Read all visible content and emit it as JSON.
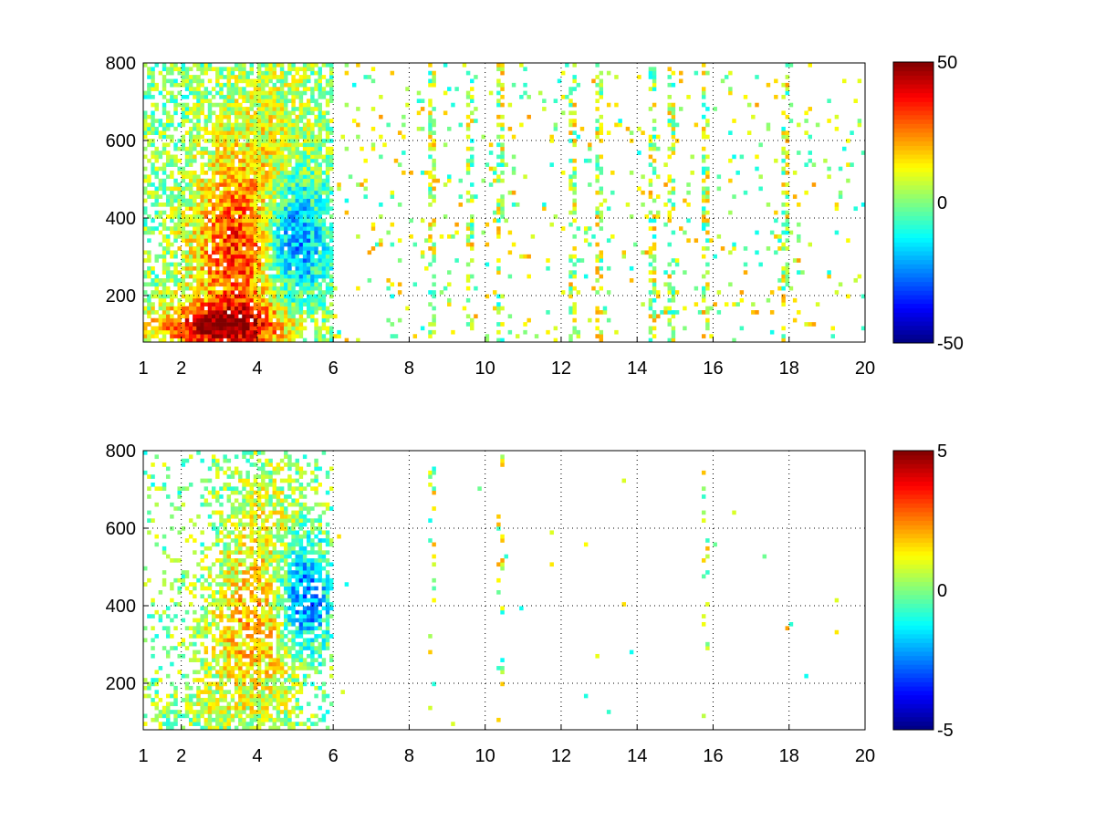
{
  "chart_data": [
    {
      "type": "heatmap",
      "title": "",
      "xlabel": "",
      "ylabel": "",
      "xlim": [
        1,
        20
      ],
      "ylim": [
        80,
        800
      ],
      "xticks": [
        1,
        2,
        4,
        6,
        8,
        10,
        12,
        14,
        16,
        18,
        20
      ],
      "yticks": [
        200,
        400,
        600,
        800
      ],
      "grid": true,
      "colormap": "jet",
      "clim": [
        -50,
        50
      ],
      "colorbar_ticks": [
        50,
        0,
        -50
      ],
      "blobs": [
        {
          "x": 3.5,
          "y": 300,
          "sx": 0.9,
          "sy": 150,
          "value": 28
        },
        {
          "x": 3.0,
          "y": 120,
          "sx": 1.2,
          "sy": 40,
          "value": 40
        },
        {
          "x": 4.9,
          "y": 350,
          "sx": 0.6,
          "sy": 120,
          "value": -35
        },
        {
          "x": 4.2,
          "y": 500,
          "sx": 1.0,
          "sy": 200,
          "value": 12
        }
      ],
      "sparse_columns": [
        8.6,
        9.6,
        10.4,
        12.3,
        13.0,
        14.4,
        14.9,
        15.8,
        17.9
      ]
    },
    {
      "type": "heatmap",
      "title": "",
      "xlabel": "",
      "ylabel": "",
      "xlim": [
        1,
        20
      ],
      "ylim": [
        80,
        800
      ],
      "xticks": [
        1,
        2,
        4,
        6,
        8,
        10,
        12,
        14,
        16,
        18,
        20
      ],
      "yticks": [
        200,
        400,
        600,
        800
      ],
      "grid": true,
      "colormap": "jet",
      "clim": [
        -5,
        5
      ],
      "colorbar_ticks": [
        5,
        0,
        -5
      ],
      "blobs": [
        {
          "x": 3.2,
          "y": 130,
          "sx": 1.0,
          "sy": 50,
          "value": 0.5
        },
        {
          "x": 4.0,
          "y": 330,
          "sx": 0.9,
          "sy": 120,
          "value": 1.8
        },
        {
          "x": 5.2,
          "y": 420,
          "sx": 0.5,
          "sy": 100,
          "value": -3.5
        },
        {
          "x": 4.3,
          "y": 550,
          "sx": 0.8,
          "sy": 150,
          "value": 1.0
        }
      ],
      "sparse_columns": [
        8.6,
        10.4,
        15.8
      ]
    }
  ]
}
